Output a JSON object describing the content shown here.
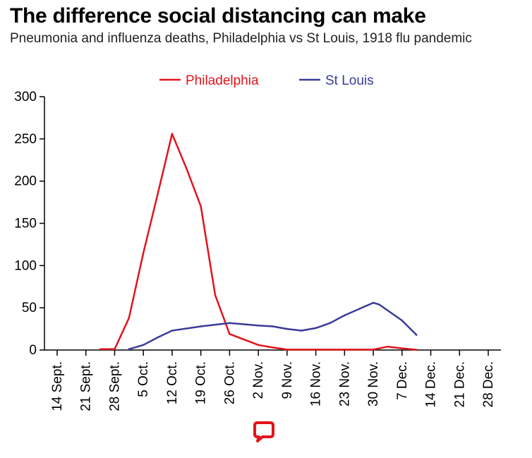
{
  "header": {
    "title": "The difference social distancing can make",
    "subtitle": "Pneumonia and influenza deaths, Philadelphia vs St Louis, 1918 flu pandemic"
  },
  "chart_data": {
    "type": "line",
    "title": "The difference social distancing can make",
    "subtitle": "Pneumonia and influenza deaths, Philadelphia vs St Louis, 1918 flu pandemic",
    "xlabel": "",
    "ylabel": "",
    "categories": [
      "14 Sept.",
      "21 Sept.",
      "28 Sept.",
      "5 Oct.",
      "12 Oct.",
      "19 Oct.",
      "26 Oct.",
      "2 Nov.",
      "9 Nov.",
      "16 Nov.",
      "23 Nov.",
      "30 Nov.",
      "7 Dec.",
      "14 Dec.",
      "21 Dec.",
      "28 Dec."
    ],
    "ylim": [
      0,
      300
    ],
    "yticks": [
      0,
      50,
      100,
      150,
      200,
      250,
      300
    ],
    "grid": false,
    "legend_position": "top-center",
    "series": [
      {
        "name": "Philadelphia",
        "color": "#e2141b",
        "points": [
          [
            1.5,
            1
          ],
          [
            2.0,
            1
          ],
          [
            2.5,
            38
          ],
          [
            3.0,
            115
          ],
          [
            3.5,
            185
          ],
          [
            4.0,
            256
          ],
          [
            4.5,
            215
          ],
          [
            5.0,
            170
          ],
          [
            5.5,
            65
          ],
          [
            6.0,
            19
          ],
          [
            7.0,
            6
          ],
          [
            7.5,
            3
          ],
          [
            8.0,
            0.5
          ],
          [
            9.0,
            0.5
          ],
          [
            10.0,
            0.5
          ],
          [
            11.0,
            0.5
          ],
          [
            11.5,
            4
          ],
          [
            12.0,
            2
          ],
          [
            12.5,
            0.3
          ]
        ]
      },
      {
        "name": "St Louis",
        "color": "#3a3c98",
        "points": [
          [
            2.5,
            1
          ],
          [
            3.0,
            6
          ],
          [
            3.5,
            15
          ],
          [
            4.0,
            23
          ],
          [
            5.0,
            28
          ],
          [
            6.0,
            32
          ],
          [
            7.0,
            29
          ],
          [
            7.5,
            28
          ],
          [
            8.0,
            25
          ],
          [
            8.5,
            23
          ],
          [
            9.0,
            26
          ],
          [
            9.5,
            32
          ],
          [
            10.0,
            41
          ],
          [
            11.0,
            56
          ],
          [
            11.2,
            54
          ],
          [
            12.0,
            35
          ],
          [
            12.5,
            18
          ]
        ]
      }
    ]
  },
  "footer": {
    "logo": "The Conversation speech-bubble logo"
  }
}
